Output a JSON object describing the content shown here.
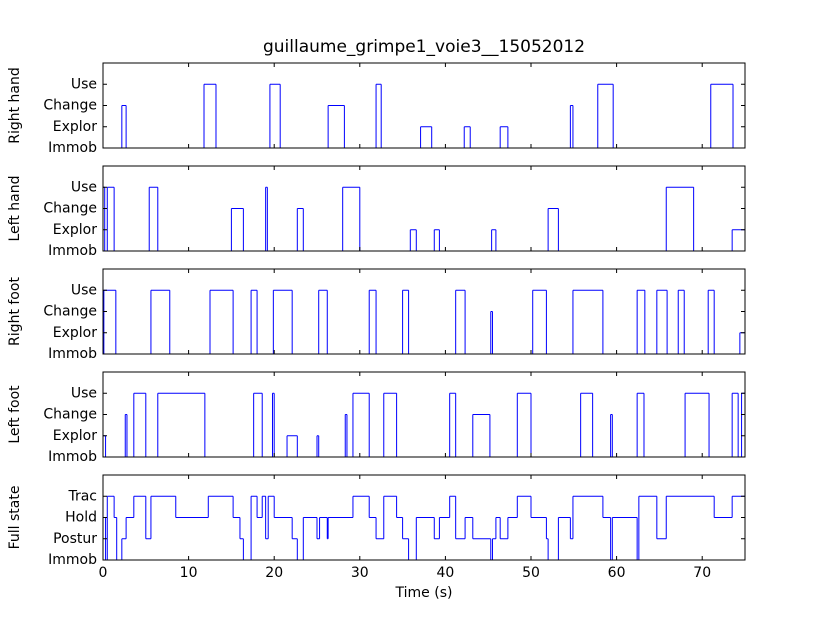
{
  "chart_data": [
    {
      "type": "step",
      "title": "guillaume_grimpe1_voie3__15052012",
      "ylabel": "Right hand",
      "color": "#0000ff",
      "xlim": [
        0,
        75
      ],
      "xticks": [
        0,
        10,
        20,
        30,
        40,
        50,
        60,
        70
      ],
      "ylim": [
        0,
        4
      ],
      "yticks": [
        {
          "value": 0,
          "label": "Immob"
        },
        {
          "value": 1,
          "label": "Explor"
        },
        {
          "value": 2,
          "label": "Change"
        },
        {
          "value": 3,
          "label": "Use"
        }
      ],
      "x": [
        0,
        2.2,
        2.7,
        11.8,
        13.2,
        19.5,
        20.7,
        26.3,
        28.2,
        31.9,
        32.5,
        37.1,
        38.4,
        42.2,
        42.9,
        46.4,
        47.3,
        54.6,
        54.9,
        57.8,
        59.6,
        71.0,
        73.6,
        75
      ],
      "values": [
        0,
        2,
        0,
        3,
        0,
        3,
        0,
        2,
        0,
        3,
        0,
        1,
        0,
        1,
        0,
        1,
        0,
        2,
        0,
        3,
        0,
        3,
        0,
        0
      ]
    },
    {
      "type": "step",
      "ylabel": "Left hand",
      "color": "#0000ff",
      "xlim": [
        0,
        75
      ],
      "xticks": [
        0,
        10,
        20,
        30,
        40,
        50,
        60,
        70
      ],
      "ylim": [
        0,
        4
      ],
      "yticks": [
        {
          "value": 0,
          "label": "Immob"
        },
        {
          "value": 1,
          "label": "Explor"
        },
        {
          "value": 2,
          "label": "Change"
        },
        {
          "value": 3,
          "label": "Use"
        }
      ],
      "x": [
        0,
        0.2,
        0.5,
        1.3,
        5.4,
        6.4,
        15.0,
        16.4,
        19.0,
        19.2,
        22.7,
        23.4,
        28.0,
        30.0,
        35.9,
        36.6,
        38.7,
        39.3,
        45.4,
        45.9,
        52.0,
        53.2,
        65.8,
        69.0,
        73.5,
        75
      ],
      "values": [
        3,
        0,
        3,
        0,
        3,
        0,
        2,
        0,
        3,
        0,
        2,
        0,
        3,
        0,
        1,
        0,
        1,
        0,
        1,
        0,
        2,
        0,
        3,
        0,
        1,
        1
      ]
    },
    {
      "type": "step",
      "ylabel": "Right foot",
      "color": "#0000ff",
      "xlim": [
        0,
        75
      ],
      "xticks": [
        0,
        10,
        20,
        30,
        40,
        50,
        60,
        70
      ],
      "ylim": [
        0,
        4
      ],
      "yticks": [
        {
          "value": 0,
          "label": "Immob"
        },
        {
          "value": 1,
          "label": "Explor"
        },
        {
          "value": 2,
          "label": "Change"
        },
        {
          "value": 3,
          "label": "Use"
        }
      ],
      "x": [
        0,
        0.1,
        1.5,
        5.6,
        7.8,
        12.5,
        15.2,
        17.3,
        18.0,
        19.9,
        22.1,
        25.2,
        26.2,
        31.1,
        31.9,
        35.0,
        35.7,
        41.2,
        42.3,
        45.3,
        45.5,
        50.2,
        51.8,
        54.9,
        58.4,
        62.4,
        63.3,
        64.7,
        65.9,
        67.2,
        67.9,
        70.7,
        71.4,
        74.4,
        75
      ],
      "values": [
        0,
        3,
        0,
        3,
        0,
        3,
        0,
        3,
        0,
        3,
        0,
        3,
        0,
        3,
        0,
        3,
        0,
        3,
        0,
        2,
        0,
        3,
        0,
        3,
        0,
        3,
        0,
        3,
        0,
        3,
        0,
        3,
        0,
        1,
        1
      ]
    },
    {
      "type": "step",
      "ylabel": "Left foot",
      "color": "#0000ff",
      "xlim": [
        0,
        75
      ],
      "xticks": [
        0,
        10,
        20,
        30,
        40,
        50,
        60,
        70
      ],
      "ylim": [
        0,
        4
      ],
      "yticks": [
        {
          "value": 0,
          "label": "Immob"
        },
        {
          "value": 1,
          "label": "Explor"
        },
        {
          "value": 2,
          "label": "Change"
        },
        {
          "value": 3,
          "label": "Use"
        }
      ],
      "x": [
        0,
        0.3,
        2.6,
        2.8,
        3.6,
        5.0,
        6.4,
        11.9,
        17.6,
        18.6,
        19.8,
        20.0,
        21.5,
        22.7,
        25.0,
        25.2,
        28.3,
        28.5,
        29.2,
        31.1,
        32.8,
        34.3,
        40.5,
        41.2,
        43.2,
        45.2,
        48.4,
        50.0,
        55.8,
        57.2,
        59.3,
        59.5,
        62.4,
        63.2,
        68.0,
        70.8,
        73.5,
        74.2,
        74.6,
        75
      ],
      "values": [
        1,
        0,
        2,
        0,
        3,
        0,
        3,
        0,
        3,
        0,
        3,
        0,
        1,
        0,
        1,
        0,
        2,
        0,
        3,
        0,
        3,
        0,
        3,
        0,
        2,
        0,
        3,
        0,
        3,
        0,
        2,
        0,
        3,
        0,
        3,
        0,
        3,
        0,
        3,
        3
      ]
    },
    {
      "type": "step",
      "ylabel": "Full state",
      "xlabel": "Time (s)",
      "color": "#0000ff",
      "xlim": [
        0,
        75
      ],
      "xticks": [
        0,
        10,
        20,
        30,
        40,
        50,
        60,
        70
      ],
      "ylim": [
        0,
        4
      ],
      "yticks": [
        {
          "value": 0,
          "label": "Immob"
        },
        {
          "value": 1,
          "label": "Postur"
        },
        {
          "value": 2,
          "label": "Hold"
        },
        {
          "value": 3,
          "label": "Trac"
        }
      ],
      "x": [
        0,
        0.3,
        0.5,
        1.3,
        1.6,
        2.2,
        2.7,
        3.6,
        5.0,
        5.6,
        8.5,
        12.3,
        15.2,
        16.0,
        16.4,
        17.3,
        18.0,
        18.6,
        19.0,
        19.3,
        20.0,
        22.1,
        22.7,
        23.4,
        25.0,
        25.3,
        26.2,
        26.3,
        29.2,
        31.1,
        31.9,
        32.8,
        34.3,
        35.0,
        35.7,
        36.6,
        38.7,
        39.3,
        40.5,
        41.2,
        42.3,
        43.2,
        45.3,
        45.5,
        45.9,
        46.4,
        47.3,
        48.4,
        50.0,
        51.8,
        52.0,
        53.2,
        54.6,
        54.9,
        58.4,
        59.3,
        59.5,
        62.4,
        62.6,
        64.7,
        65.8,
        71.4,
        73.5,
        75
      ],
      "values": [
        2,
        0,
        3,
        2,
        0,
        1,
        2,
        3,
        1,
        3,
        2,
        3,
        2,
        1,
        0,
        3,
        2,
        3,
        1,
        3,
        2,
        1,
        0,
        2,
        1,
        2,
        1,
        2,
        3,
        2,
        1,
        3,
        2,
        1,
        0,
        2,
        1,
        2,
        3,
        1,
        2,
        1,
        0,
        1,
        2,
        1,
        2,
        3,
        2,
        1,
        0,
        2,
        1,
        3,
        2,
        0,
        2,
        0,
        3,
        1,
        3,
        2,
        3,
        3
      ]
    }
  ]
}
